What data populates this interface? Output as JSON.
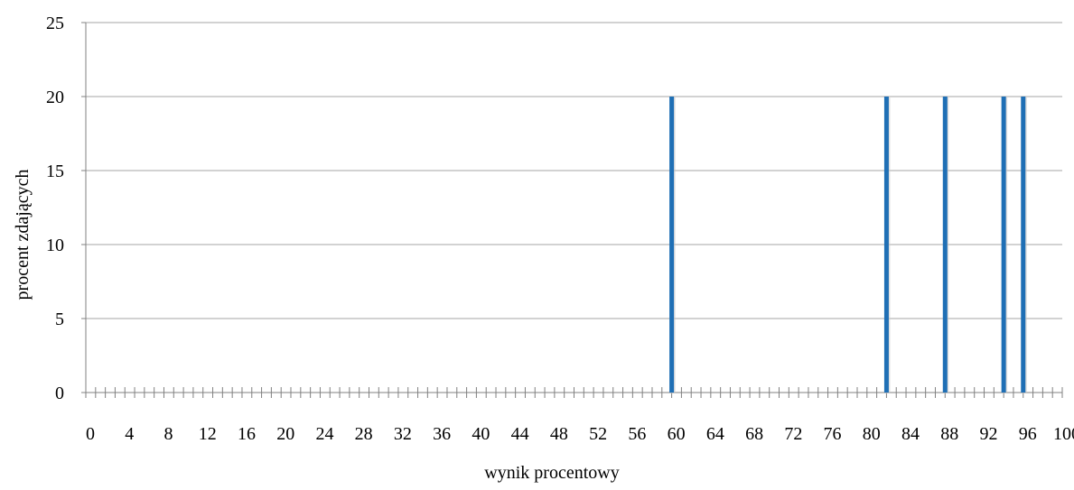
{
  "chart_data": {
    "type": "bar",
    "title": "",
    "xlabel": "wynik procentowy",
    "ylabel": "procent zdających",
    "xlim": [
      0,
      100
    ],
    "ylim": [
      0,
      25
    ],
    "x_ticks": [
      0,
      4,
      8,
      12,
      16,
      20,
      24,
      28,
      32,
      36,
      40,
      44,
      48,
      52,
      56,
      60,
      64,
      68,
      72,
      76,
      80,
      84,
      88,
      92,
      96,
      100
    ],
    "y_ticks": [
      0,
      5,
      10,
      15,
      20,
      25
    ],
    "x_tick_labels": [
      "0",
      "4",
      "8",
      "12",
      "16",
      "20",
      "24",
      "28",
      "32",
      "36",
      "40",
      "44",
      "48",
      "52",
      "56",
      "60",
      "64",
      "68",
      "72",
      "76",
      "80",
      "84",
      "88",
      "92",
      "96",
      "100"
    ],
    "y_tick_labels": [
      "0",
      "5",
      "10",
      "15",
      "20",
      "25"
    ],
    "categories": [
      60,
      82,
      88,
      94,
      96
    ],
    "values": [
      20,
      20,
      20,
      20,
      20
    ],
    "grid": "horizontal",
    "minor_x_step": 1,
    "bar_color": "#1f6fb5",
    "grid_color": "#a6a6a6"
  }
}
